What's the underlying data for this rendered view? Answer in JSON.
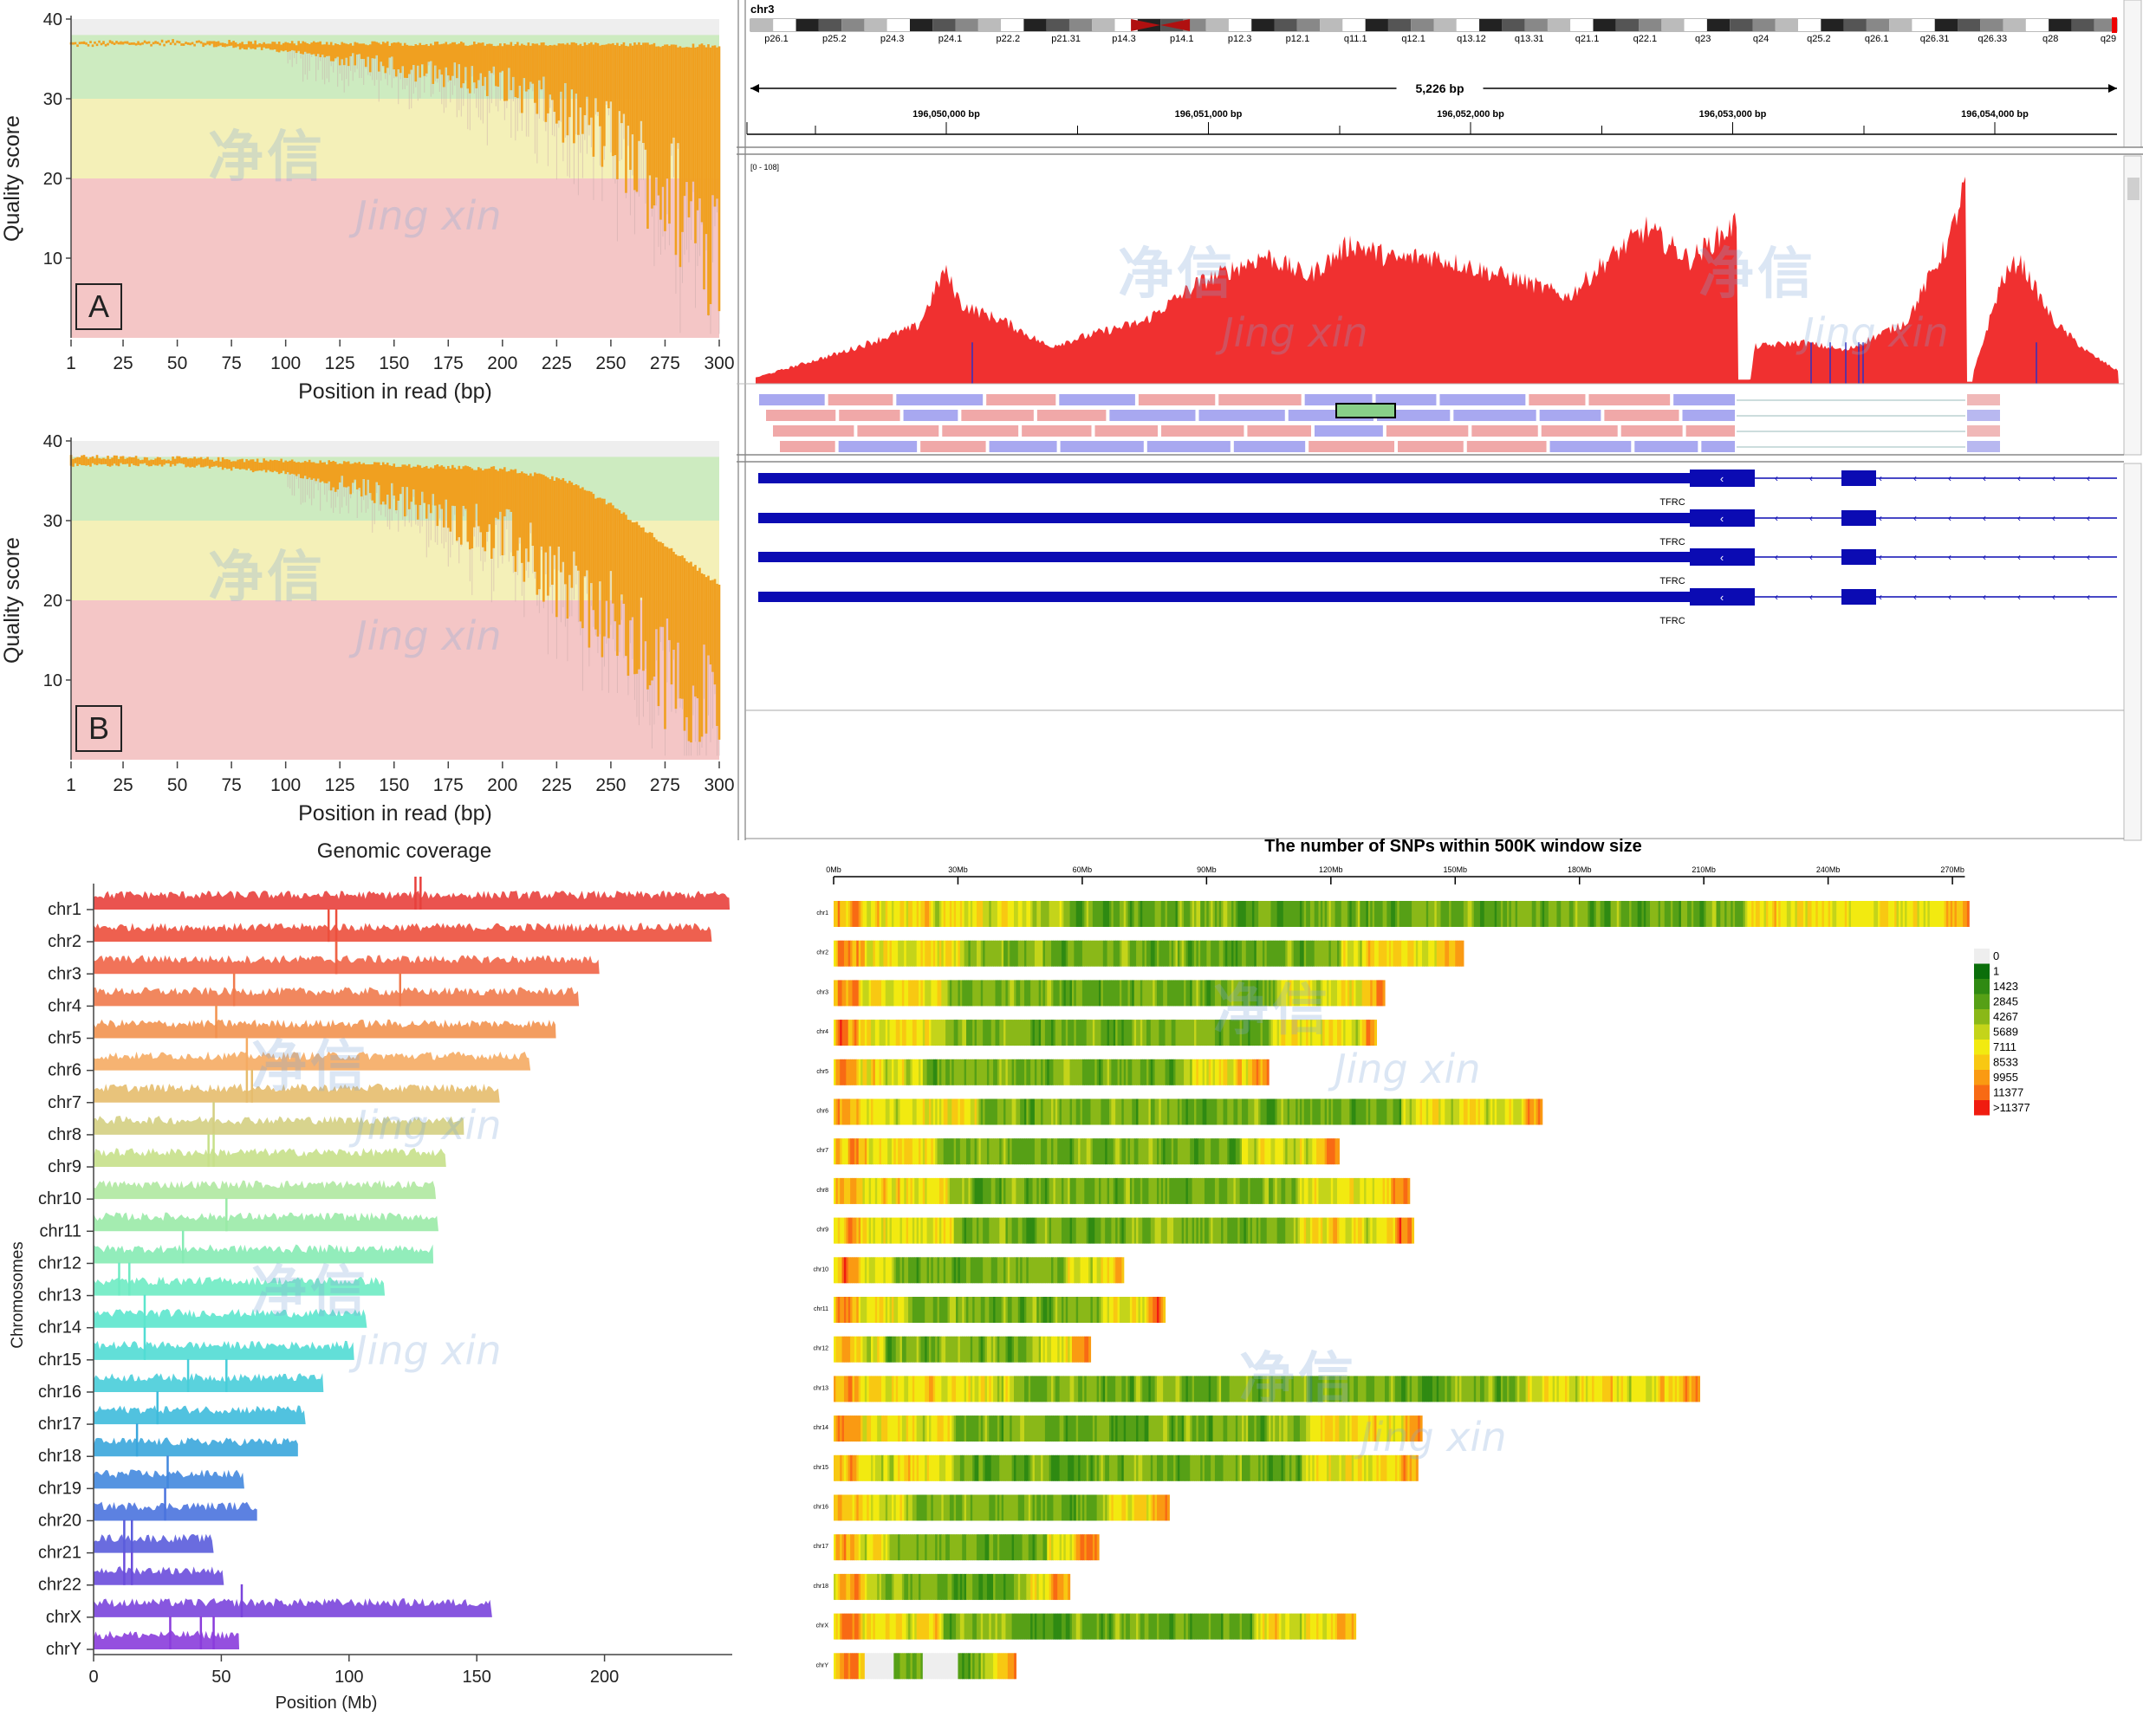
{
  "panels": {
    "quality_a": {
      "letter": "A"
    },
    "quality_b": {
      "letter": "B"
    }
  },
  "watermark": {
    "cn": "净信",
    "en": "Jing xin"
  },
  "igv": {
    "chromosome": "chr3",
    "span_label": "5,226 bp",
    "coverage_range": "[0 - 108]",
    "gene_name": "TFRC",
    "band_labels": [
      "p26.1",
      "p25.2",
      "p24.3",
      "p24.1",
      "p22.2",
      "p21.31",
      "p14.3",
      "p14.1",
      "p12.3",
      "p12.1",
      "q11.1",
      "q12.1",
      "q13.12",
      "q13.31",
      "q21.1",
      "q22.1",
      "q23",
      "q24",
      "q25.2",
      "q26.1",
      "q26.31",
      "q26.33",
      "q28",
      "q29"
    ],
    "ruler_labels": [
      "196,050,000 bp",
      "196,051,000 bp",
      "196,052,000 bp",
      "196,053,000 bp",
      "196,054,000 bp"
    ]
  },
  "chart_data": [
    {
      "id": "quality_a",
      "type": "bar",
      "xlabel": "Position in read (bp)",
      "ylabel": "Quality score",
      "xlim": [
        1,
        300
      ],
      "ylim": [
        0,
        40
      ],
      "xticks": [
        1,
        25,
        50,
        75,
        100,
        125,
        150,
        175,
        200,
        225,
        250,
        275,
        300
      ],
      "yticks": [
        10,
        20,
        30,
        40
      ],
      "zones": [
        {
          "from": 0,
          "to": 20,
          "color": "#f4c6c6"
        },
        {
          "from": 20,
          "to": 30,
          "color": "#f4f0b8"
        },
        {
          "from": 30,
          "to": 38,
          "color": "#cdebc0"
        }
      ],
      "bar_color": "#f0a020",
      "profile": {
        "positions": [
          1,
          50,
          100,
          150,
          200,
          230,
          250,
          270,
          285,
          300
        ],
        "upper": [
          37,
          37.2,
          37,
          36.9,
          36.9,
          36.8,
          36.8,
          36.8,
          36.7,
          36.7
        ],
        "lower": [
          37,
          37,
          36,
          34,
          32,
          28,
          25,
          20,
          16,
          12
        ]
      }
    },
    {
      "id": "quality_b",
      "type": "bar",
      "xlabel": "Position in read (bp)",
      "ylabel": "Quality score",
      "xlim": [
        1,
        300
      ],
      "ylim": [
        0,
        40
      ],
      "xticks": [
        1,
        25,
        50,
        75,
        100,
        125,
        150,
        175,
        200,
        225,
        250,
        275,
        300
      ],
      "yticks": [
        10,
        20,
        30,
        40
      ],
      "zones": [
        {
          "from": 0,
          "to": 20,
          "color": "#f4c6c6"
        },
        {
          "from": 20,
          "to": 30,
          "color": "#f4f0b8"
        },
        {
          "from": 30,
          "to": 38,
          "color": "#cdebc0"
        }
      ],
      "bar_color": "#f0a020",
      "profile": {
        "positions": [
          1,
          50,
          100,
          150,
          200,
          230,
          250,
          270,
          285,
          300
        ],
        "upper": [
          38,
          37.8,
          37.5,
          37,
          36.5,
          35,
          32,
          28,
          25,
          22
        ],
        "lower": [
          37,
          37,
          36,
          33,
          28,
          22,
          17,
          12,
          9,
          7
        ]
      }
    },
    {
      "id": "coverage",
      "type": "area",
      "title": "Genomic coverage",
      "xlabel": "Position (Mb)",
      "ylabel": "Chromosomes",
      "xlim": [
        0,
        250
      ],
      "xticks": [
        0,
        50,
        100,
        150,
        200
      ],
      "categories": [
        "chr1",
        "chr2",
        "chr3",
        "chr4",
        "chr5",
        "chr6",
        "chr7",
        "chr8",
        "chr9",
        "chr10",
        "chr11",
        "chr12",
        "chr13",
        "chr14",
        "chr15",
        "chr16",
        "chr17",
        "chr18",
        "chr19",
        "chr20",
        "chr21",
        "chr22",
        "chrX",
        "chrY"
      ],
      "lengths_mb": [
        249,
        242,
        198,
        190,
        181,
        171,
        159,
        145,
        138,
        134,
        135,
        133,
        114,
        107,
        102,
        90,
        83,
        80,
        59,
        64,
        47,
        51,
        156,
        57
      ],
      "colors": [
        "#e8403c",
        "#ec4f3c",
        "#ef6447",
        "#f07a4d",
        "#f2924f",
        "#f5ab63",
        "#e6bc6d",
        "#d4cf82",
        "#c7e08a",
        "#afe8a0",
        "#9aeaa7",
        "#86ebb4",
        "#6eebc3",
        "#5ce6cd",
        "#51dcd4",
        "#48cdd9",
        "#3ebbdb",
        "#3aa6dc",
        "#4288de",
        "#4a73de",
        "#5a5cdc",
        "#6a4ddb",
        "#7a44dc",
        "#8a3cdc"
      ],
      "spikes_mb": [
        [
          128,
          126
        ],
        [
          92,
          95
        ],
        [
          95,
          95
        ],
        [
          55,
          120
        ],
        [
          48
        ],
        [
          60
        ],
        [
          60,
          62
        ],
        [
          47
        ],
        [
          45,
          47
        ],
        [],
        [
          52
        ],
        [
          35
        ],
        [
          10,
          14
        ],
        [
          20
        ],
        [
          20
        ],
        [
          37,
          52
        ],
        [
          25
        ],
        [
          17
        ],
        [
          29
        ],
        [
          28
        ],
        [
          12,
          15
        ],
        [
          12,
          15
        ],
        [
          58
        ],
        [
          30,
          42,
          47
        ]
      ]
    },
    {
      "id": "snp_density",
      "type": "heatmap",
      "title": "The number of SNPs within 500K window size",
      "xticks": [
        "0Mb",
        "30Mb",
        "60Mb",
        "90Mb",
        "120Mb",
        "150Mb",
        "180Mb",
        "210Mb",
        "240Mb",
        "270Mb"
      ],
      "xlim_mb": [
        0,
        275
      ],
      "categories": [
        "chr1",
        "chr2",
        "chr3",
        "chr4",
        "chr5",
        "chr6",
        "chr7",
        "chr8",
        "chr9",
        "chr10",
        "chr11",
        "chr12",
        "chr13",
        "chr14",
        "chr15",
        "chr16",
        "chr17",
        "chr18",
        "chrX",
        "chrY"
      ],
      "lengths_mb": [
        274,
        152,
        133,
        131,
        105,
        171,
        122,
        139,
        140,
        70,
        80,
        62,
        209,
        142,
        141,
        81,
        64,
        57,
        126,
        44
      ],
      "legend": [
        {
          "label": "0",
          "color": "#eeeeee"
        },
        {
          "label": "1",
          "color": "#0a6e0a"
        },
        {
          "label": "1423",
          "color": "#2f8a12"
        },
        {
          "label": "2845",
          "color": "#56a016"
        },
        {
          "label": "4267",
          "color": "#8ab818"
        },
        {
          "label": "5689",
          "color": "#c4d41a"
        },
        {
          "label": "7111",
          "color": "#f2ea10"
        },
        {
          "label": "8533",
          "color": "#f8c812"
        },
        {
          "label": "9955",
          "color": "#fa9a12"
        },
        {
          "label": "11377",
          "color": "#f86a14"
        },
        {
          "label": ">11377",
          "color": "#f01c10"
        }
      ]
    }
  ]
}
